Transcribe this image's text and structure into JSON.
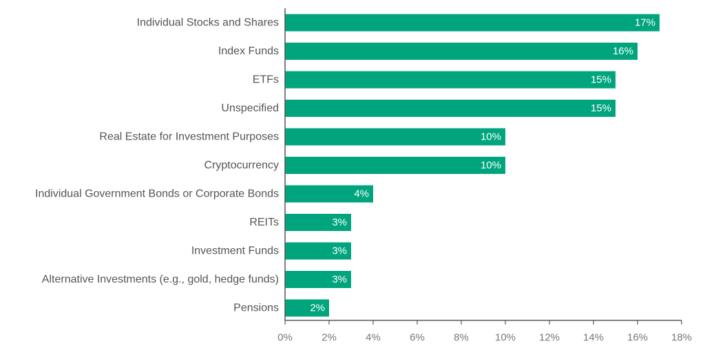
{
  "chart_data": {
    "type": "bar",
    "orientation": "horizontal",
    "categories": [
      "Individual Stocks and Shares",
      "Index Funds",
      "ETFs",
      "Unspecified",
      "Real Estate for Investment Purposes",
      "Cryptocurrency",
      "Individual Government Bonds or Corporate Bonds",
      "REITs",
      "Investment Funds",
      "Alternative Investments (e.g., gold, hedge funds)",
      "Pensions"
    ],
    "values": [
      17,
      16,
      15,
      15,
      10,
      10,
      4,
      3,
      3,
      3,
      2
    ],
    "data_labels": [
      "17%",
      "16%",
      "15%",
      "15%",
      "10%",
      "10%",
      "4%",
      "3%",
      "3%",
      "3%",
      "2%"
    ],
    "xlim": [
      0,
      18
    ],
    "x_ticks": [
      0,
      2,
      4,
      6,
      8,
      10,
      12,
      14,
      16,
      18
    ],
    "x_tick_labels": [
      "0%",
      "2%",
      "4%",
      "6%",
      "8%",
      "10%",
      "12%",
      "14%",
      "16%",
      "18%"
    ],
    "title": "",
    "xlabel": "",
    "ylabel": "",
    "grid": false,
    "legend": "none",
    "colors": {
      "bar": "#00a57e",
      "axis": "#555555",
      "category_text": "#555555",
      "tick_text": "#777777",
      "data_label_text": "#ffffff"
    }
  }
}
